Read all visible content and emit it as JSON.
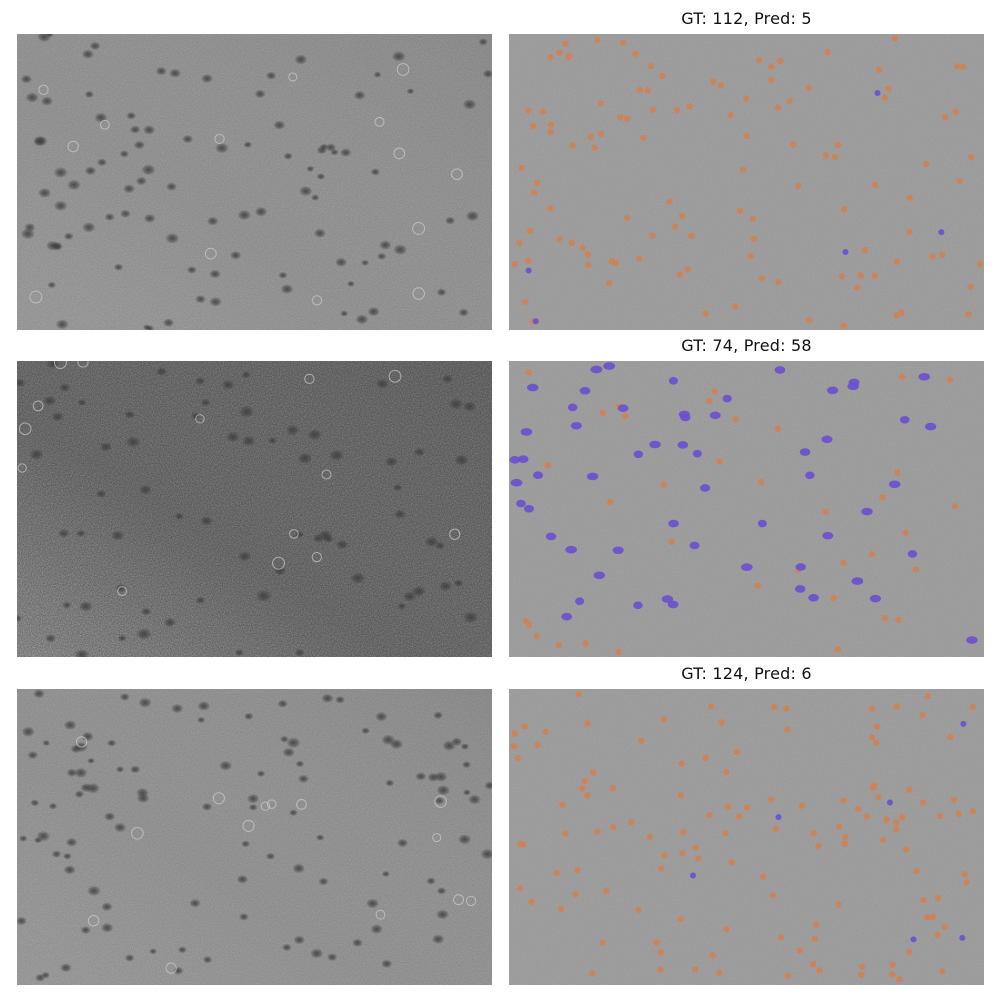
{
  "figure": {
    "rows": [
      {
        "title": "GT: 112,  Pred: 5",
        "raw_image": "raw-microscopy-image-row-1",
        "overlay_image": "prediction-overlay-image-row-1"
      },
      {
        "title": "GT: 74,  Pred: 58",
        "raw_image": "raw-microscopy-image-row-2",
        "overlay_image": "prediction-overlay-image-row-2"
      },
      {
        "title": "GT: 124,  Pred: 6",
        "raw_image": "raw-microscopy-image-row-3",
        "overlay_image": "prediction-overlay-image-row-3"
      }
    ],
    "colors": {
      "gt_marker": "#d4804f",
      "pred_marker": "#6a4fd0",
      "raw_background": "#a3a3a3",
      "overlay_background": "#a6a6a6",
      "dark_spot": "#3c3c3c"
    }
  }
}
